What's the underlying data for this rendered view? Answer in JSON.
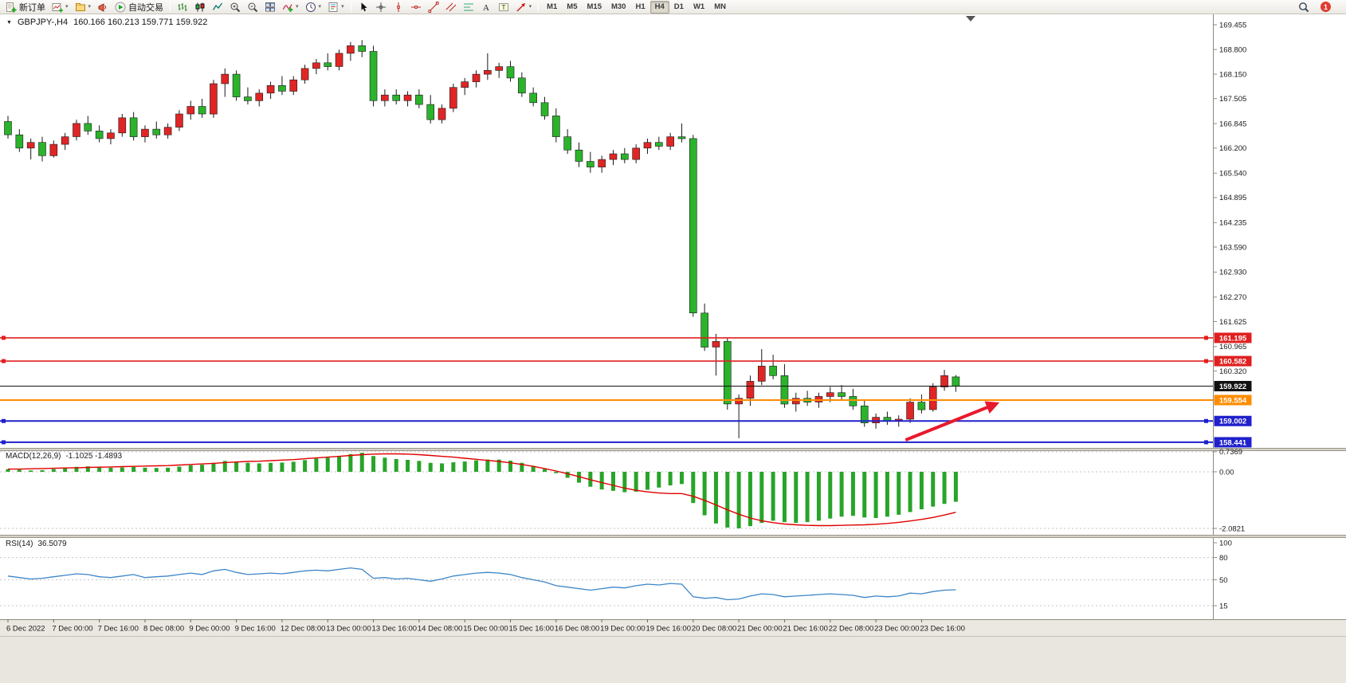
{
  "window": {
    "notification_badge": "1"
  },
  "toolbar": {
    "groups": [
      {
        "items": [
          {
            "name": "new-order",
            "icon": "doc-plus",
            "label": "新订单"
          },
          {
            "name": "new-chart",
            "icon": "chart-plus",
            "caret": true
          },
          {
            "name": "profiles",
            "icon": "profiles",
            "caret": true
          },
          {
            "name": "alerts",
            "icon": "megaphone"
          },
          {
            "name": "autotrading",
            "icon": "play",
            "label": "自动交易"
          }
        ]
      },
      {
        "items": [
          {
            "name": "bar-chart",
            "icon": "bars"
          },
          {
            "name": "candlestick-chart",
            "icon": "candles"
          },
          {
            "name": "line-chart",
            "icon": "linechart"
          },
          {
            "name": "zoom-in",
            "icon": "zoom-in"
          },
          {
            "name": "zoom-out",
            "icon": "zoom-out"
          },
          {
            "name": "tile-windows",
            "icon": "tiles"
          },
          {
            "name": "indicators",
            "icon": "indicator-plus",
            "caret": true
          },
          {
            "name": "periods",
            "icon": "clock",
            "caret": true
          },
          {
            "name": "templates",
            "icon": "template",
            "caret": true
          }
        ]
      },
      {
        "items": [
          {
            "name": "cursor",
            "icon": "cursor"
          },
          {
            "name": "crosshair",
            "icon": "crosshair"
          },
          {
            "name": "vertical-line",
            "icon": "vline"
          },
          {
            "name": "horizontal-line",
            "icon": "hline"
          },
          {
            "name": "trendline",
            "icon": "tline"
          },
          {
            "name": "equidistant-channel",
            "icon": "channel"
          },
          {
            "name": "fibonacci",
            "icon": "fibo"
          },
          {
            "name": "text",
            "icon": "textA"
          },
          {
            "name": "text-label",
            "icon": "textT"
          },
          {
            "name": "arrows",
            "icon": "arrow-obj",
            "caret": true
          }
        ]
      },
      {
        "items": [
          {
            "name": "tf-m1",
            "label": "M1"
          },
          {
            "name": "tf-m5",
            "label": "M5"
          },
          {
            "name": "tf-m15",
            "label": "M15"
          },
          {
            "name": "tf-m30",
            "label": "M30"
          },
          {
            "name": "tf-h1",
            "label": "H1"
          },
          {
            "name": "tf-h4",
            "label": "H4",
            "active": true
          },
          {
            "name": "tf-d1",
            "label": "D1"
          },
          {
            "name": "tf-w1",
            "label": "W1"
          },
          {
            "name": "tf-mn",
            "label": "MN"
          }
        ]
      }
    ]
  },
  "chart": {
    "one_click_arrow": "▼",
    "symbol_period": "GBPJPY-,H4",
    "ohlc_text": "160.166 160.213 159.771 159.922"
  },
  "macd_panel": {
    "title": "MACD(12,26,9)",
    "values_text": "-1.1025 -1.4893"
  },
  "rsi_panel": {
    "title": "RSI(14)",
    "value_text": "36.5079"
  },
  "colors": {
    "bull": "#e02525",
    "bear": "#2bb32b",
    "macd_hist": "#28a428",
    "macd_signal": "#e00000",
    "rsi_line": "#3d85c8",
    "resistance": "#e02020",
    "support": "#2020cc",
    "pivot_orange": "#ff8c00",
    "current_price": "#111111",
    "arrow": "#e8192c"
  },
  "chart_data": {
    "type": "candlestick+indicators",
    "symbol": "GBPJPY",
    "timeframe": "H4",
    "current_ohlc": {
      "open": 160.166,
      "high": 160.213,
      "low": 159.771,
      "close": 159.922
    },
    "ylim": [
      158.3,
      169.56
    ],
    "price_axis_ticks": [
      169.455,
      168.8,
      168.15,
      167.505,
      166.845,
      166.2,
      165.54,
      164.895,
      164.235,
      163.59,
      162.93,
      162.27,
      161.625,
      160.965,
      160.32
    ],
    "candles_ohlc": [
      [
        166.9,
        167.05,
        166.45,
        166.55
      ],
      [
        166.55,
        166.7,
        166.1,
        166.2
      ],
      [
        166.2,
        166.45,
        165.9,
        166.35
      ],
      [
        166.35,
        166.5,
        165.85,
        166.0
      ],
      [
        166.0,
        166.4,
        165.95,
        166.3
      ],
      [
        166.3,
        166.6,
        166.15,
        166.5
      ],
      [
        166.5,
        166.95,
        166.4,
        166.85
      ],
      [
        166.85,
        167.05,
        166.55,
        166.65
      ],
      [
        166.65,
        166.8,
        166.35,
        166.45
      ],
      [
        166.45,
        166.7,
        166.3,
        166.6
      ],
      [
        166.6,
        167.1,
        166.5,
        167.0
      ],
      [
        167.0,
        167.15,
        166.4,
        166.5
      ],
      [
        166.5,
        166.8,
        166.35,
        166.7
      ],
      [
        166.7,
        166.9,
        166.45,
        166.55
      ],
      [
        166.55,
        166.85,
        166.45,
        166.75
      ],
      [
        166.75,
        167.2,
        166.65,
        167.1
      ],
      [
        167.1,
        167.45,
        166.95,
        167.3
      ],
      [
        167.3,
        167.5,
        167.0,
        167.1
      ],
      [
        167.1,
        168.0,
        167.0,
        167.9
      ],
      [
        167.9,
        168.3,
        167.55,
        168.15
      ],
      [
        168.15,
        168.25,
        167.45,
        167.55
      ],
      [
        167.55,
        167.8,
        167.35,
        167.45
      ],
      [
        167.45,
        167.75,
        167.3,
        167.65
      ],
      [
        167.65,
        167.95,
        167.5,
        167.85
      ],
      [
        167.85,
        168.1,
        167.6,
        167.7
      ],
      [
        167.7,
        168.1,
        167.6,
        168.0
      ],
      [
        168.0,
        168.4,
        167.9,
        168.3
      ],
      [
        168.3,
        168.55,
        168.15,
        168.45
      ],
      [
        168.45,
        168.7,
        168.25,
        168.35
      ],
      [
        168.35,
        168.8,
        168.25,
        168.7
      ],
      [
        168.7,
        169.0,
        168.5,
        168.9
      ],
      [
        168.9,
        169.05,
        168.6,
        168.75
      ],
      [
        168.75,
        168.9,
        167.3,
        167.45
      ],
      [
        167.45,
        167.75,
        167.3,
        167.6
      ],
      [
        167.6,
        167.75,
        167.35,
        167.45
      ],
      [
        167.45,
        167.7,
        167.3,
        167.6
      ],
      [
        167.6,
        167.75,
        167.25,
        167.35
      ],
      [
        167.35,
        167.6,
        166.85,
        166.95
      ],
      [
        166.95,
        167.35,
        166.85,
        167.25
      ],
      [
        167.25,
        167.9,
        167.15,
        167.8
      ],
      [
        167.8,
        168.05,
        167.6,
        167.95
      ],
      [
        167.95,
        168.25,
        167.8,
        168.15
      ],
      [
        168.15,
        168.7,
        168.0,
        168.25
      ],
      [
        168.25,
        168.45,
        168.05,
        168.35
      ],
      [
        168.35,
        168.5,
        167.95,
        168.05
      ],
      [
        168.05,
        168.2,
        167.55,
        167.65
      ],
      [
        167.65,
        167.8,
        167.3,
        167.4
      ],
      [
        167.4,
        167.55,
        166.95,
        167.05
      ],
      [
        167.05,
        167.25,
        166.35,
        166.5
      ],
      [
        166.5,
        166.7,
        166.05,
        166.15
      ],
      [
        166.15,
        166.35,
        165.7,
        165.85
      ],
      [
        165.85,
        166.1,
        165.55,
        165.7
      ],
      [
        165.7,
        166.0,
        165.55,
        165.9
      ],
      [
        165.9,
        166.15,
        165.75,
        166.05
      ],
      [
        166.05,
        166.2,
        165.8,
        165.9
      ],
      [
        165.9,
        166.3,
        165.8,
        166.2
      ],
      [
        166.2,
        166.45,
        166.05,
        166.35
      ],
      [
        166.35,
        166.5,
        166.15,
        166.25
      ],
      [
        166.25,
        166.6,
        166.15,
        166.5
      ],
      [
        166.5,
        166.85,
        166.35,
        166.45
      ],
      [
        166.45,
        166.55,
        161.75,
        161.85
      ],
      [
        161.85,
        162.1,
        160.85,
        160.95
      ],
      [
        160.95,
        161.3,
        160.2,
        161.1
      ],
      [
        161.1,
        161.2,
        159.3,
        159.45
      ],
      [
        159.45,
        159.7,
        158.55,
        159.6
      ],
      [
        159.6,
        160.2,
        159.4,
        160.05
      ],
      [
        160.05,
        160.9,
        159.95,
        160.45
      ],
      [
        160.45,
        160.75,
        160.1,
        160.2
      ],
      [
        160.2,
        160.5,
        159.35,
        159.45
      ],
      [
        159.45,
        159.75,
        159.25,
        159.6
      ],
      [
        159.6,
        159.8,
        159.4,
        159.5
      ],
      [
        159.5,
        159.75,
        159.35,
        159.65
      ],
      [
        159.65,
        159.9,
        159.5,
        159.75
      ],
      [
        159.75,
        159.95,
        159.55,
        159.65
      ],
      [
        159.65,
        159.85,
        159.3,
        159.4
      ],
      [
        159.4,
        159.55,
        158.85,
        158.95
      ],
      [
        158.95,
        159.2,
        158.8,
        159.1
      ],
      [
        159.1,
        159.25,
        158.9,
        159.0
      ],
      [
        159.0,
        159.15,
        158.85,
        159.05
      ],
      [
        159.05,
        159.6,
        158.95,
        159.5
      ],
      [
        159.5,
        159.7,
        159.2,
        159.3
      ],
      [
        159.3,
        160.0,
        159.25,
        159.9
      ],
      [
        159.9,
        160.35,
        159.8,
        160.2
      ],
      [
        160.166,
        160.213,
        159.771,
        159.922
      ]
    ],
    "time_labels": [
      "6 Dec 2022",
      "7 Dec 00:00",
      "7 Dec 16:00",
      "8 Dec 08:00",
      "9 Dec 00:00",
      "9 Dec 16:00",
      "12 Dec 08:00",
      "13 Dec 00:00",
      "13 Dec 16:00",
      "14 Dec 08:00",
      "15 Dec 00:00",
      "15 Dec 16:00",
      "16 Dec 08:00",
      "19 Dec 00:00",
      "19 Dec 16:00",
      "20 Dec 08:00",
      "21 Dec 00:00",
      "21 Dec 16:00",
      "22 Dec 08:00",
      "23 Dec 00:00",
      "23 Dec 16:00"
    ],
    "horizontal_levels": [
      {
        "price": 161.195,
        "color_key": "resistance",
        "width": 1.6,
        "handles": true
      },
      {
        "price": 160.582,
        "color_key": "resistance",
        "width": 1.6,
        "handles": true
      },
      {
        "price": 159.922,
        "color_key": "current_price",
        "width": 1,
        "handles": false
      },
      {
        "price": 159.554,
        "color_key": "pivot_orange",
        "width": 2,
        "handles": false
      },
      {
        "price": 159.002,
        "color_key": "support",
        "width": 2,
        "handles": true
      },
      {
        "price": 158.441,
        "color_key": "support",
        "width": 2,
        "handles": true
      }
    ],
    "macd": {
      "params": "12,26,9",
      "current_main": -1.1025,
      "current_signal": -1.4893,
      "axis_ticks": [
        {
          "value": 0.7369,
          "label": "0.7369"
        },
        {
          "value": 0,
          "label": "0.00"
        },
        {
          "value": -2.0821,
          "label": "-2.0821"
        }
      ],
      "histogram": [
        0.1,
        0.08,
        0.05,
        0.06,
        0.1,
        0.14,
        0.18,
        0.2,
        0.18,
        0.15,
        0.16,
        0.18,
        0.15,
        0.14,
        0.15,
        0.19,
        0.24,
        0.26,
        0.33,
        0.4,
        0.38,
        0.33,
        0.31,
        0.33,
        0.34,
        0.37,
        0.43,
        0.49,
        0.52,
        0.58,
        0.65,
        0.7,
        0.58,
        0.52,
        0.47,
        0.44,
        0.4,
        0.33,
        0.31,
        0.35,
        0.38,
        0.42,
        0.45,
        0.45,
        0.41,
        0.33,
        0.22,
        0.1,
        -0.05,
        -0.22,
        -0.4,
        -0.55,
        -0.65,
        -0.7,
        -0.75,
        -0.73,
        -0.66,
        -0.58,
        -0.5,
        -0.45,
        -1.15,
        -1.6,
        -1.9,
        -2.05,
        -2.08,
        -2.0,
        -1.88,
        -1.8,
        -1.85,
        -1.88,
        -1.85,
        -1.8,
        -1.72,
        -1.65,
        -1.62,
        -1.68,
        -1.7,
        -1.65,
        -1.58,
        -1.48,
        -1.38,
        -1.28,
        -1.18,
        -1.1025
      ],
      "signal": [
        0.1,
        0.1,
        0.11,
        0.12,
        0.13,
        0.14,
        0.15,
        0.16,
        0.17,
        0.18,
        0.19,
        0.2,
        0.21,
        0.22,
        0.23,
        0.25,
        0.27,
        0.29,
        0.31,
        0.34,
        0.36,
        0.38,
        0.39,
        0.41,
        0.43,
        0.45,
        0.48,
        0.51,
        0.54,
        0.57,
        0.6,
        0.63,
        0.65,
        0.66,
        0.66,
        0.65,
        0.63,
        0.6,
        0.57,
        0.54,
        0.5,
        0.46,
        0.42,
        0.38,
        0.33,
        0.27,
        0.2,
        0.12,
        0.03,
        -0.07,
        -0.18,
        -0.29,
        -0.4,
        -0.5,
        -0.6,
        -0.68,
        -0.74,
        -0.78,
        -0.8,
        -0.8,
        -0.9,
        -1.05,
        -1.22,
        -1.4,
        -1.56,
        -1.7,
        -1.8,
        -1.87,
        -1.92,
        -1.95,
        -1.97,
        -1.98,
        -1.98,
        -1.97,
        -1.96,
        -1.95,
        -1.93,
        -1.9,
        -1.86,
        -1.81,
        -1.75,
        -1.68,
        -1.59,
        -1.4893
      ]
    },
    "rsi": {
      "period": 14,
      "current": 36.5079,
      "axis_ticks": [
        {
          "value": 100,
          "label": "100"
        },
        {
          "value": 80,
          "label": "80"
        },
        {
          "value": 50,
          "label": "50"
        },
        {
          "value": 15,
          "label": "15"
        }
      ],
      "values": [
        55,
        53,
        51,
        52,
        54,
        56,
        58,
        57,
        54,
        53,
        55,
        57,
        53,
        54,
        55,
        57,
        59,
        57,
        62,
        64,
        60,
        57,
        58,
        59,
        58,
        60,
        62,
        63,
        62,
        64,
        66,
        64,
        52,
        53,
        51,
        52,
        50,
        48,
        51,
        55,
        57,
        59,
        60,
        59,
        57,
        53,
        50,
        47,
        42,
        40,
        38,
        36,
        38,
        40,
        39,
        42,
        44,
        43,
        45,
        44,
        27,
        25,
        26,
        23,
        24,
        28,
        31,
        30,
        27,
        28,
        29,
        30,
        31,
        30,
        29,
        26,
        28,
        27,
        28,
        32,
        31,
        34,
        36,
        36.5079
      ]
    },
    "trend_arrow": {
      "from": {
        "index": 78.6,
        "price": 158.5
      },
      "to": {
        "index": 86.5,
        "price": 159.45
      }
    }
  }
}
